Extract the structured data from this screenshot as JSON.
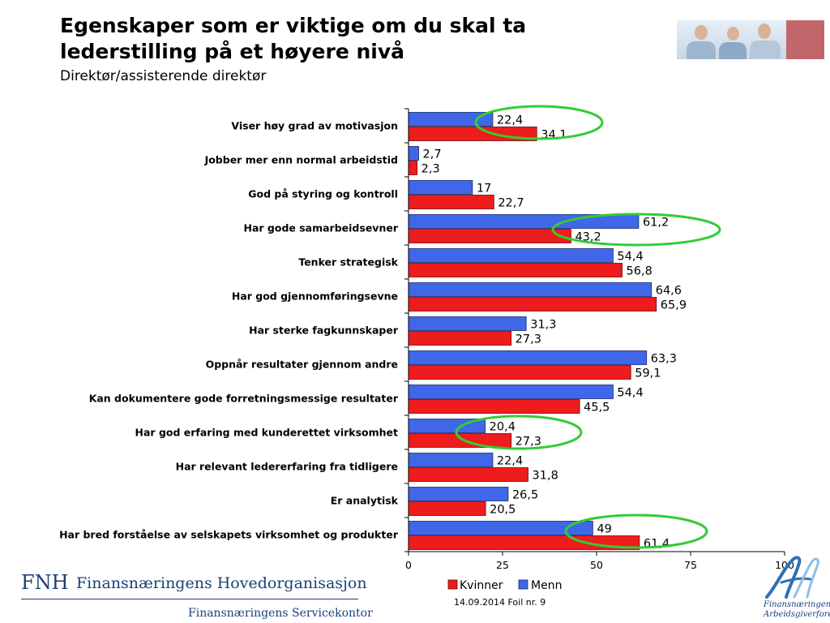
{
  "slide": {
    "title_line1": "Egenskaper som er viktige om du skal ta",
    "title_line2": "lederstilling på et høyere nivå",
    "subtitle": "Direktør/assisterende direktør",
    "footer": "14.09.2014 Foil nr. 9"
  },
  "logos": {
    "fnh_abbr": "FNH",
    "fnh_name": "Finansnæringens Hovedorganisasjon",
    "fnh_sub": "Finansnæringens Servicekontor",
    "fa_line1": "Finansnæringens",
    "fa_line2": "Arbeidsgiverforening"
  },
  "chart_data": {
    "type": "bar",
    "orientation": "horizontal",
    "categories": [
      "Viser høy grad av motivasjon",
      "Jobber mer enn normal arbeidstid",
      "God på styring og kontroll",
      "Har gode samarbeidsevner",
      "Tenker strategisk",
      "Har god gjennomføringsevne",
      "Har sterke fagkunnskaper",
      "Oppnår resultater gjennom andre",
      "Kan dokumentere gode forretningsmessige resultater",
      "Har god erfaring med kunderettet virksomhet",
      "Har relevant ledererfaring fra tidligere",
      "Er analytisk",
      "Har bred forståelse av selskapets virksomhet og produkter"
    ],
    "series": [
      {
        "name": "Menn",
        "color": "#3f67e8",
        "values": [
          22.4,
          2.7,
          17,
          61.2,
          54.4,
          64.6,
          31.3,
          63.3,
          54.4,
          20.4,
          22.4,
          26.5,
          49
        ],
        "labels": [
          "22,4",
          "2,7",
          "17",
          "61,2",
          "54,4",
          "64,6",
          "31,3",
          "63,3",
          "54,4",
          "20,4",
          "22,4",
          "26,5",
          "49"
        ]
      },
      {
        "name": "Kvinner",
        "color": "#ee1c1c",
        "values": [
          34.1,
          2.3,
          22.7,
          43.2,
          56.8,
          65.9,
          27.3,
          59.1,
          45.5,
          27.3,
          31.8,
          20.5,
          61.4
        ],
        "labels": [
          "34,1",
          "2,3",
          "22,7",
          "43,2",
          "56,8",
          "65,9",
          "27,3",
          "59,1",
          "45,5",
          "27,3",
          "31,8",
          "20,5",
          "61,4"
        ]
      }
    ],
    "xlim": [
      0,
      100
    ],
    "xticks": [
      0,
      25,
      50,
      75,
      100
    ],
    "legend": [
      "Kvinner",
      "Menn"
    ],
    "legend_position": "bottom",
    "grid": false,
    "highlighted_categories": [
      0,
      3,
      9,
      12
    ],
    "highlight_color": "#33cc33"
  }
}
